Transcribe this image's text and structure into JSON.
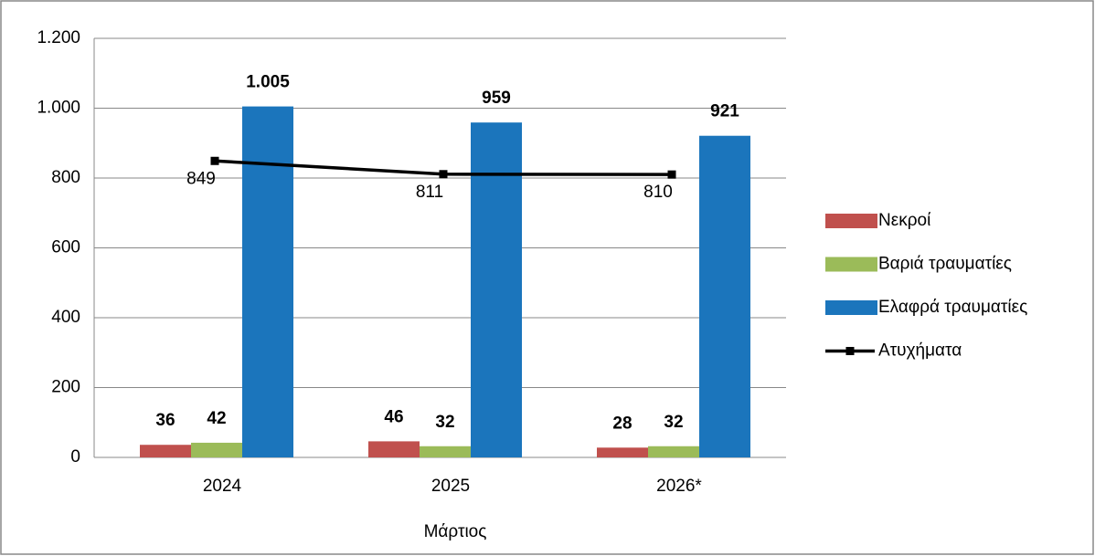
{
  "chart_data": {
    "type": "bar",
    "categories": [
      "2024",
      "2025",
      "2026*"
    ],
    "x_label": "Μάρτιος",
    "series": [
      {
        "name": "Νεκροί",
        "color": "#c0504d",
        "values": [
          36,
          46,
          28
        ]
      },
      {
        "name": "Βαριά τραυματίες",
        "color": "#9bbb59",
        "values": [
          42,
          32,
          32
        ]
      },
      {
        "name": "Ελαφρά τραυματίες",
        "color": "#1b75bc",
        "values": [
          1005,
          959,
          921
        ],
        "value_labels": [
          "1.005",
          "959",
          "921"
        ]
      },
      {
        "name": "Ατυχήματα",
        "type": "line",
        "color": "#000000",
        "values": [
          849,
          811,
          810
        ]
      }
    ],
    "ylim": [
      0,
      1200
    ],
    "yticks": [
      0,
      200,
      400,
      600,
      800,
      {
        "value": 1000,
        "label": "1.000"
      },
      {
        "value": 1200,
        "label": "1.200"
      }
    ],
    "grid": true,
    "legend": "right"
  }
}
